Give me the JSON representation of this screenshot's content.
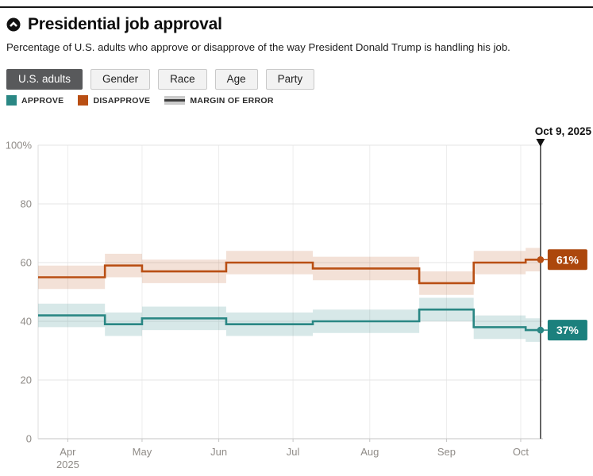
{
  "header": {
    "title": "Presidential job approval",
    "subtitle": "Percentage of U.S. adults who approve or disapprove of the way President Donald Trump is handling his job."
  },
  "tabs": {
    "items": [
      {
        "label": "U.S. adults",
        "active": true
      },
      {
        "label": "Gender",
        "active": false
      },
      {
        "label": "Race",
        "active": false
      },
      {
        "label": "Age",
        "active": false
      },
      {
        "label": "Party",
        "active": false
      }
    ]
  },
  "legend": {
    "moe_label": "MARGIN OF ERROR"
  },
  "annotation": {
    "date_label": "Oct 9, 2025",
    "t": 191
  },
  "chart_data": {
    "type": "line",
    "subtype": "step-after",
    "title": "Presidential job approval",
    "xlabel": "",
    "ylabel": "",
    "x_unit": "days since Apr 1, 2025",
    "x_domain": [
      -12,
      192
    ],
    "y_domain": [
      0,
      100
    ],
    "grid": true,
    "legend_position": "top-left",
    "y_ticks": [
      {
        "v": 0,
        "label": "0"
      },
      {
        "v": 20,
        "label": "20"
      },
      {
        "v": 40,
        "label": "40"
      },
      {
        "v": 60,
        "label": "60"
      },
      {
        "v": 80,
        "label": "80"
      },
      {
        "v": 100,
        "label": "100%"
      }
    ],
    "x_ticks": [
      {
        "t": 0,
        "label": "Apr",
        "sublabel": "2025"
      },
      {
        "t": 30,
        "label": "May",
        "sublabel": ""
      },
      {
        "t": 61,
        "label": "Jun",
        "sublabel": ""
      },
      {
        "t": 91,
        "label": "Jul",
        "sublabel": ""
      },
      {
        "t": 122,
        "label": "Aug",
        "sublabel": ""
      },
      {
        "t": 153,
        "label": "Sep",
        "sublabel": ""
      },
      {
        "t": 183,
        "label": "Oct",
        "sublabel": ""
      }
    ],
    "margin_of_error": 4,
    "series": [
      {
        "name": "Approve",
        "legend_label": "APPROVE",
        "color": "#2a8784",
        "band_color": "rgba(42,135,132,0.19)",
        "label_bg": "#1b807d",
        "end_label": "37%",
        "end_value": 37,
        "end_t": 191,
        "points": [
          {
            "t": -12,
            "v": 42
          },
          {
            "t": 15,
            "v": 39
          },
          {
            "t": 30,
            "v": 41
          },
          {
            "t": 64,
            "v": 39
          },
          {
            "t": 99,
            "v": 40
          },
          {
            "t": 142,
            "v": 44
          },
          {
            "t": 164,
            "v": 38
          },
          {
            "t": 185,
            "v": 37
          }
        ]
      },
      {
        "name": "Disapprove",
        "legend_label": "DISAPPROVE",
        "color": "#b94f14",
        "band_color": "rgba(185,79,20,0.17)",
        "label_bg": "#ac470c",
        "end_label": "61%",
        "end_value": 61,
        "end_t": 191,
        "points": [
          {
            "t": -12,
            "v": 55
          },
          {
            "t": 15,
            "v": 59
          },
          {
            "t": 30,
            "v": 57
          },
          {
            "t": 64,
            "v": 60
          },
          {
            "t": 99,
            "v": 58
          },
          {
            "t": 142,
            "v": 53
          },
          {
            "t": 164,
            "v": 60
          },
          {
            "t": 185,
            "v": 61
          }
        ]
      }
    ]
  }
}
